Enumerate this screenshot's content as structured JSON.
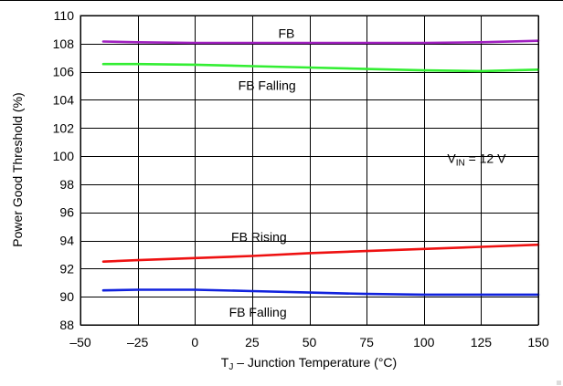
{
  "chart_data": {
    "type": "line",
    "title": "",
    "xlabel": "T",
    "xlabel_sub": "J",
    "xlabel_rest": " – Junction Temperature (°C)",
    "ylabel": "Power Good Threshold (%)",
    "xlim": [
      -50,
      150
    ],
    "ylim": [
      88,
      110
    ],
    "xticks": [
      -50,
      -25,
      0,
      25,
      50,
      75,
      100,
      125,
      150
    ],
    "xtick_labels": [
      "–50",
      "–25",
      "0",
      "25",
      "50",
      "75",
      "100",
      "125",
      "150"
    ],
    "yticks": [
      88,
      90,
      92,
      94,
      96,
      98,
      100,
      102,
      104,
      106,
      108,
      110
    ],
    "grid": true,
    "legend": "none",
    "series": [
      {
        "name": "FB",
        "color": "#a020c0",
        "x": [
          -40,
          -25,
          0,
          25,
          50,
          75,
          100,
          125,
          150
        ],
        "y": [
          108.15,
          108.1,
          108.05,
          108.05,
          108.05,
          108.05,
          108.05,
          108.1,
          108.2
        ]
      },
      {
        "name": "FB Falling",
        "color": "#33ee33",
        "x": [
          -40,
          -25,
          0,
          25,
          50,
          75,
          100,
          125,
          150
        ],
        "y": [
          106.55,
          106.55,
          106.5,
          106.4,
          106.3,
          106.2,
          106.1,
          106.05,
          106.15
        ]
      },
      {
        "name": "FB Rising",
        "color": "#ee1111",
        "x": [
          -40,
          -25,
          0,
          25,
          50,
          75,
          100,
          125,
          150
        ],
        "y": [
          92.5,
          92.6,
          92.75,
          92.9,
          93.1,
          93.25,
          93.4,
          93.55,
          93.7
        ]
      },
      {
        "name": "FB Falling",
        "color": "#1122dd",
        "x": [
          -40,
          -25,
          0,
          25,
          50,
          75,
          100,
          125,
          150
        ],
        "y": [
          90.45,
          90.5,
          90.5,
          90.4,
          90.3,
          90.2,
          90.15,
          90.15,
          90.15
        ]
      }
    ],
    "annotations": [
      {
        "text": "FB",
        "x": 40,
        "y": 108.75
      },
      {
        "text": "FB Falling",
        "x": 31.5,
        "y": 105.05
      },
      {
        "text": "FB Rising",
        "x": 28,
        "y": 94.25
      },
      {
        "text": "FB Falling",
        "x": 27.5,
        "y": 88.9
      }
    ],
    "condition": {
      "prefix": "V",
      "sub": "IN",
      "suffix": " = 12 V",
      "x": 123,
      "y": 99.85
    }
  }
}
